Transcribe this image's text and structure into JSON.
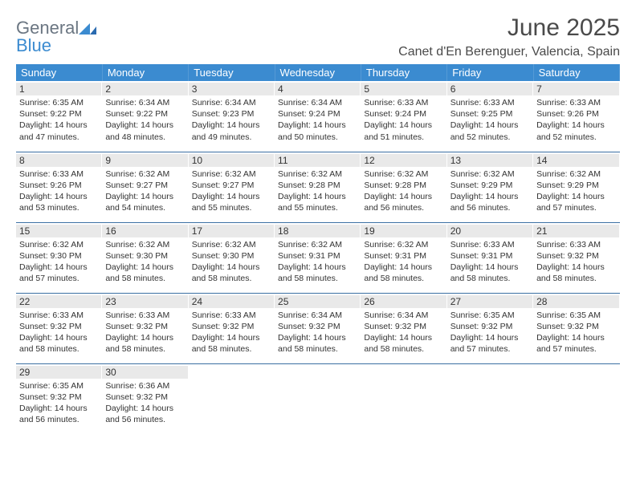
{
  "logo": {
    "text_a": "General",
    "text_b": "Blue"
  },
  "title": "June 2025",
  "location": "Canet d'En Berenguer, Valencia, Spain",
  "colors": {
    "header_bg": "#3b8bd0",
    "header_text": "#ffffff",
    "daybar_bg": "#e9e9e9",
    "cell_border": "#3b6fa3",
    "body_text": "#333333",
    "title_text": "#4a4a4a",
    "logo_gray": "#6b7682",
    "logo_blue": "#3b8bd0",
    "page_bg": "#ffffff"
  },
  "layout": {
    "columns": 7,
    "rows": 5,
    "daynum_fontsize": 12,
    "cell_fontsize": 10.5,
    "header_fontsize": 13,
    "title_fontsize": 30,
    "location_fontsize": 16
  },
  "weekdays": [
    "Sunday",
    "Monday",
    "Tuesday",
    "Wednesday",
    "Thursday",
    "Friday",
    "Saturday"
  ],
  "weeks": [
    [
      {
        "n": "1",
        "sr": "Sunrise: 6:35 AM",
        "ss": "Sunset: 9:22 PM",
        "dl": "Daylight: 14 hours and 47 minutes."
      },
      {
        "n": "2",
        "sr": "Sunrise: 6:34 AM",
        "ss": "Sunset: 9:22 PM",
        "dl": "Daylight: 14 hours and 48 minutes."
      },
      {
        "n": "3",
        "sr": "Sunrise: 6:34 AM",
        "ss": "Sunset: 9:23 PM",
        "dl": "Daylight: 14 hours and 49 minutes."
      },
      {
        "n": "4",
        "sr": "Sunrise: 6:34 AM",
        "ss": "Sunset: 9:24 PM",
        "dl": "Daylight: 14 hours and 50 minutes."
      },
      {
        "n": "5",
        "sr": "Sunrise: 6:33 AM",
        "ss": "Sunset: 9:24 PM",
        "dl": "Daylight: 14 hours and 51 minutes."
      },
      {
        "n": "6",
        "sr": "Sunrise: 6:33 AM",
        "ss": "Sunset: 9:25 PM",
        "dl": "Daylight: 14 hours and 52 minutes."
      },
      {
        "n": "7",
        "sr": "Sunrise: 6:33 AM",
        "ss": "Sunset: 9:26 PM",
        "dl": "Daylight: 14 hours and 52 minutes."
      }
    ],
    [
      {
        "n": "8",
        "sr": "Sunrise: 6:33 AM",
        "ss": "Sunset: 9:26 PM",
        "dl": "Daylight: 14 hours and 53 minutes."
      },
      {
        "n": "9",
        "sr": "Sunrise: 6:32 AM",
        "ss": "Sunset: 9:27 PM",
        "dl": "Daylight: 14 hours and 54 minutes."
      },
      {
        "n": "10",
        "sr": "Sunrise: 6:32 AM",
        "ss": "Sunset: 9:27 PM",
        "dl": "Daylight: 14 hours and 55 minutes."
      },
      {
        "n": "11",
        "sr": "Sunrise: 6:32 AM",
        "ss": "Sunset: 9:28 PM",
        "dl": "Daylight: 14 hours and 55 minutes."
      },
      {
        "n": "12",
        "sr": "Sunrise: 6:32 AM",
        "ss": "Sunset: 9:28 PM",
        "dl": "Daylight: 14 hours and 56 minutes."
      },
      {
        "n": "13",
        "sr": "Sunrise: 6:32 AM",
        "ss": "Sunset: 9:29 PM",
        "dl": "Daylight: 14 hours and 56 minutes."
      },
      {
        "n": "14",
        "sr": "Sunrise: 6:32 AM",
        "ss": "Sunset: 9:29 PM",
        "dl": "Daylight: 14 hours and 57 minutes."
      }
    ],
    [
      {
        "n": "15",
        "sr": "Sunrise: 6:32 AM",
        "ss": "Sunset: 9:30 PM",
        "dl": "Daylight: 14 hours and 57 minutes."
      },
      {
        "n": "16",
        "sr": "Sunrise: 6:32 AM",
        "ss": "Sunset: 9:30 PM",
        "dl": "Daylight: 14 hours and 58 minutes."
      },
      {
        "n": "17",
        "sr": "Sunrise: 6:32 AM",
        "ss": "Sunset: 9:30 PM",
        "dl": "Daylight: 14 hours and 58 minutes."
      },
      {
        "n": "18",
        "sr": "Sunrise: 6:32 AM",
        "ss": "Sunset: 9:31 PM",
        "dl": "Daylight: 14 hours and 58 minutes."
      },
      {
        "n": "19",
        "sr": "Sunrise: 6:32 AM",
        "ss": "Sunset: 9:31 PM",
        "dl": "Daylight: 14 hours and 58 minutes."
      },
      {
        "n": "20",
        "sr": "Sunrise: 6:33 AM",
        "ss": "Sunset: 9:31 PM",
        "dl": "Daylight: 14 hours and 58 minutes."
      },
      {
        "n": "21",
        "sr": "Sunrise: 6:33 AM",
        "ss": "Sunset: 9:32 PM",
        "dl": "Daylight: 14 hours and 58 minutes."
      }
    ],
    [
      {
        "n": "22",
        "sr": "Sunrise: 6:33 AM",
        "ss": "Sunset: 9:32 PM",
        "dl": "Daylight: 14 hours and 58 minutes."
      },
      {
        "n": "23",
        "sr": "Sunrise: 6:33 AM",
        "ss": "Sunset: 9:32 PM",
        "dl": "Daylight: 14 hours and 58 minutes."
      },
      {
        "n": "24",
        "sr": "Sunrise: 6:33 AM",
        "ss": "Sunset: 9:32 PM",
        "dl": "Daylight: 14 hours and 58 minutes."
      },
      {
        "n": "25",
        "sr": "Sunrise: 6:34 AM",
        "ss": "Sunset: 9:32 PM",
        "dl": "Daylight: 14 hours and 58 minutes."
      },
      {
        "n": "26",
        "sr": "Sunrise: 6:34 AM",
        "ss": "Sunset: 9:32 PM",
        "dl": "Daylight: 14 hours and 58 minutes."
      },
      {
        "n": "27",
        "sr": "Sunrise: 6:35 AM",
        "ss": "Sunset: 9:32 PM",
        "dl": "Daylight: 14 hours and 57 minutes."
      },
      {
        "n": "28",
        "sr": "Sunrise: 6:35 AM",
        "ss": "Sunset: 9:32 PM",
        "dl": "Daylight: 14 hours and 57 minutes."
      }
    ],
    [
      {
        "n": "29",
        "sr": "Sunrise: 6:35 AM",
        "ss": "Sunset: 9:32 PM",
        "dl": "Daylight: 14 hours and 56 minutes."
      },
      {
        "n": "30",
        "sr": "Sunrise: 6:36 AM",
        "ss": "Sunset: 9:32 PM",
        "dl": "Daylight: 14 hours and 56 minutes."
      },
      {
        "empty": true
      },
      {
        "empty": true
      },
      {
        "empty": true
      },
      {
        "empty": true
      },
      {
        "empty": true
      }
    ]
  ]
}
